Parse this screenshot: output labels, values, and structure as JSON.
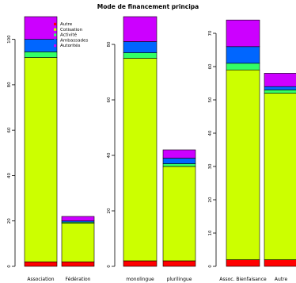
{
  "title": "Mode de financement principa",
  "chart_data": [
    {
      "type": "bar",
      "stacked": true,
      "categories": [
        "Association",
        "Fédération"
      ],
      "ylim": [
        0,
        110
      ],
      "yticks": [
        0,
        20,
        40,
        60,
        80,
        100
      ],
      "series": [
        {
          "name": "Autre",
          "color": "#ff0000",
          "values": [
            2,
            2
          ]
        },
        {
          "name": "Cotisation",
          "color": "#ccff00",
          "values": [
            90,
            17
          ]
        },
        {
          "name": "Activité",
          "color": "#33ff66",
          "values": [
            2.5,
            0.5
          ]
        },
        {
          "name": "Ambassades",
          "color": "#0066ff",
          "values": [
            5.5,
            0.5
          ]
        },
        {
          "name": "Autorités",
          "color": "#cc00ff",
          "values": [
            10,
            2
          ]
        }
      ],
      "legend": {
        "position": "top-right"
      }
    },
    {
      "type": "bar",
      "stacked": true,
      "categories": [
        "monolingue",
        "plurilingue"
      ],
      "ylim": [
        0,
        90
      ],
      "yticks": [
        0,
        20,
        40,
        60,
        80
      ],
      "series": [
        {
          "name": "Autre",
          "color": "#ff0000",
          "values": [
            2,
            2
          ]
        },
        {
          "name": "Cotisation",
          "color": "#ccff00",
          "values": [
            73,
            34
          ]
        },
        {
          "name": "Activité",
          "color": "#33ff66",
          "values": [
            2,
            1
          ]
        },
        {
          "name": "Ambassades",
          "color": "#0066ff",
          "values": [
            4,
            2
          ]
        },
        {
          "name": "Autorités",
          "color": "#cc00ff",
          "values": [
            9,
            3
          ]
        }
      ]
    },
    {
      "type": "bar",
      "stacked": true,
      "categories": [
        "Assoc. Bienfaisance",
        "Autre"
      ],
      "ylim": [
        0,
        75
      ],
      "yticks": [
        0,
        10,
        20,
        30,
        40,
        50,
        60,
        70
      ],
      "series": [
        {
          "name": "Autre",
          "color": "#ff0000",
          "values": [
            2,
            2
          ]
        },
        {
          "name": "Cotisation",
          "color": "#ccff00",
          "values": [
            57,
            50
          ]
        },
        {
          "name": "Activité",
          "color": "#33ff66",
          "values": [
            2,
            1
          ]
        },
        {
          "name": "Ambassades",
          "color": "#0066ff",
          "values": [
            5,
            1
          ]
        },
        {
          "name": "Autorités",
          "color": "#cc00ff",
          "values": [
            8,
            4
          ]
        }
      ]
    }
  ]
}
